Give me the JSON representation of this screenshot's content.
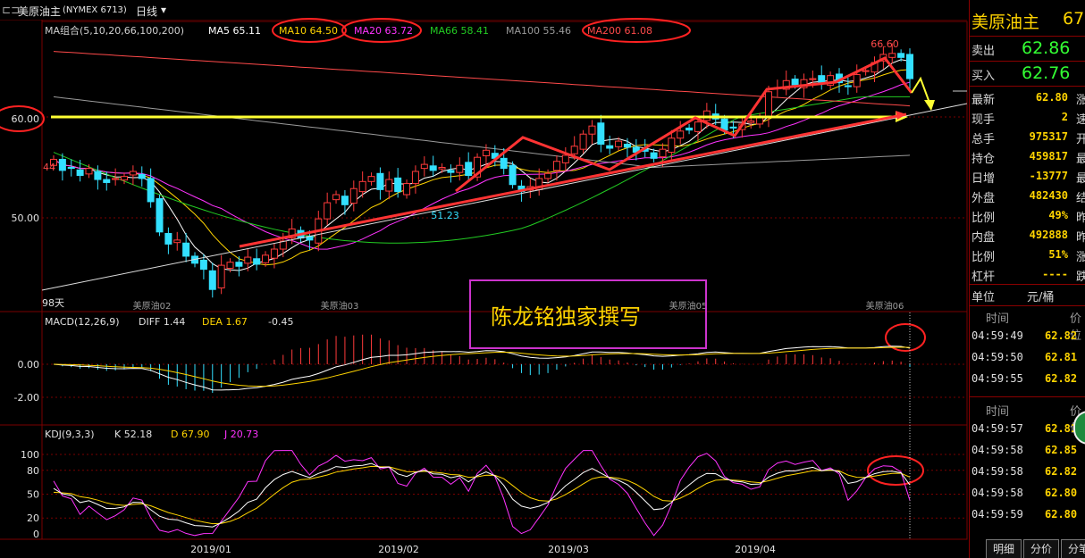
{
  "header": {
    "window_title": "美原油主",
    "instrument_code": "(NYMEX 6713)",
    "period": "日线",
    "period_arrow": "▾",
    "right_title": "美原油主",
    "right_title_cut": "67"
  },
  "ma_legend": {
    "group": "MA组合(5,10,20,66,100,200)",
    "items": [
      {
        "label": "MA5 65.11",
        "color": "#ffffff"
      },
      {
        "label": "MA10 64.50",
        "color": "#ffd400"
      },
      {
        "label": "MA20 63.72",
        "color": "#ff33ff"
      },
      {
        "label": "MA66 58.41",
        "color": "#22cc22"
      },
      {
        "label": "MA100 55.46",
        "color": "#9a9a9a"
      },
      {
        "label": "MA200 61.08",
        "color": "#ff4a4a"
      }
    ]
  },
  "quote": {
    "sell_label": "卖出",
    "sell_value": "62.86",
    "buy_label": "买入",
    "buy_value": "62.76",
    "rows": [
      {
        "label": "最新",
        "value": "62.80",
        "cut": "涨"
      },
      {
        "label": "现手",
        "value": "2",
        "cut": "速"
      },
      {
        "label": "总手",
        "value": "975317",
        "cut": "开"
      },
      {
        "label": "持仓",
        "value": "459817",
        "cut": "最"
      },
      {
        "label": "日增",
        "value": "-13777",
        "cut": "最"
      },
      {
        "label": "外盘",
        "value": "482430",
        "cut": "结"
      },
      {
        "label": "比例",
        "value": "49%",
        "cut": "昨"
      },
      {
        "label": "内盘",
        "value": "492888",
        "cut": "昨"
      },
      {
        "label": "比例",
        "value": "51%",
        "cut": "涨"
      },
      {
        "label": "杠杆",
        "value": "----",
        "cut": "跌"
      }
    ],
    "unit_label": "单位",
    "unit_value": "元/桶",
    "time_header": "时间",
    "price_header": "价位",
    "ticks_1": [
      {
        "time": "04:59:49",
        "price": "62.82"
      },
      {
        "time": "04:59:50",
        "price": "62.81"
      },
      {
        "time": "04:59:55",
        "price": "62.82"
      }
    ],
    "ticks_2": [
      {
        "time": "04:59:57",
        "price": "62.81"
      },
      {
        "time": "04:59:58",
        "price": "62.85"
      },
      {
        "time": "04:59:58",
        "price": "62.82"
      },
      {
        "time": "04:59:58",
        "price": "62.80"
      },
      {
        "time": "04:59:59",
        "price": "62.80"
      }
    ],
    "tabs": [
      "明细",
      "分价",
      "分笔"
    ]
  },
  "annotation": {
    "text": "陈龙铭独家撰写"
  },
  "chart_data": [
    {
      "type": "candlestick",
      "title": "美原油主 日线",
      "price_axis_ticks": [
        60.0,
        50.0
      ],
      "ylim": [
        42.0,
        68.3
      ],
      "labels": {
        "high_mark": "66.60",
        "low_mark": "51.23",
        "left_mark": "44",
        "days": "98天"
      },
      "contract_labels": [
        "美原油02",
        "美原油03",
        "美原油05",
        "美原油06"
      ],
      "note_colors": {
        "up": "#ff3b3b",
        "down": "#33e0ff",
        "ma5": "#ffffff",
        "ma10": "#ffd400",
        "ma20": "#ff33ff",
        "ma66": "#22cc22",
        "ma100": "#9a9a9a",
        "ma200": "#ff4a4a"
      },
      "closes": [
        55.8,
        54.7,
        54.9,
        54.2,
        54.9,
        53.8,
        53.5,
        53.9,
        54.1,
        54.6,
        53.9,
        51.6,
        48.6,
        47.4,
        47.8,
        46.2,
        45.5,
        44.9,
        42.9,
        45.3,
        45.6,
        45.2,
        46.1,
        45.4,
        46.3,
        46.9,
        47.7,
        48.9,
        48.0,
        47.8,
        49.9,
        51.5,
        52.3,
        51.3,
        52.9,
        53.6,
        54.1,
        52.8,
        53.8,
        52.6,
        53.4,
        54.6,
        55.3,
        54.7,
        55.0,
        54.5,
        55.2,
        54.2,
        56.0,
        56.7,
        55.9,
        54.9,
        53.3,
        52.6,
        53.1,
        53.9,
        54.4,
        55.6,
        56.2,
        57.1,
        58.3,
        59.1,
        57.3,
        56.9,
        57.6,
        57.0,
        56.5,
        56.6,
        55.9,
        56.8,
        57.9,
        58.6,
        58.7,
        59.5,
        60.6,
        59.8,
        58.7,
        58.9,
        59.3,
        59.6,
        60.0,
        62.5,
        62.9,
        63.6,
        63.2,
        63.7,
        63.8,
        63.3,
        64.1,
        63.4,
        63.0,
        64.2,
        64.6,
        65.4,
        66.2,
        66.3,
        65.9,
        63.8
      ],
      "macd": {
        "label": "MACD(12,26,9)",
        "diff_label": "DIFF 1.44",
        "dea_label": "DEA 1.67",
        "hist_label": "-0.45",
        "axis_ticks": [
          "0.00",
          "-2.00"
        ]
      },
      "kdj": {
        "label": "KDJ(9,3,3)",
        "k_label": "K 52.18",
        "d_label": "D 67.90",
        "j_label": "J 20.73",
        "axis_ticks": [
          "100",
          "80",
          "50",
          "20",
          "0"
        ]
      },
      "x_axis_labels": [
        "2019/01",
        "2019/02",
        "2019/03",
        "2019/04"
      ]
    }
  ]
}
